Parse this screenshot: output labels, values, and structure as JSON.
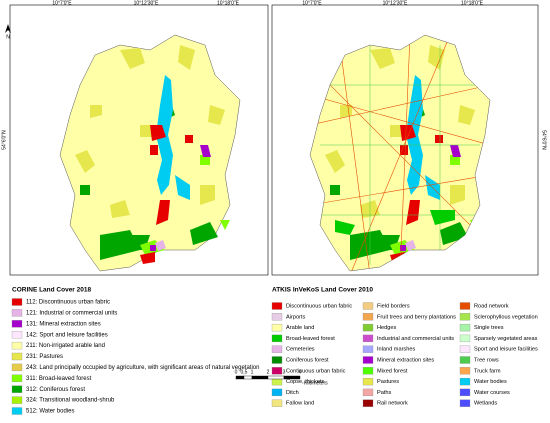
{
  "maps": [
    {
      "lon_labels": [
        "10°7'0\"E",
        "10°12'30\"E",
        "10°18'0\"E"
      ],
      "lat_label": "54°6'0\"N"
    },
    {
      "lon_labels": [
        "10°7'0\"E",
        "10°12'30\"E",
        "10°18'0\"E"
      ],
      "lat_label": "54°6'0\"N"
    }
  ],
  "north": "N",
  "scale": {
    "labels": [
      "0",
      "0,5",
      "1",
      "2",
      "3",
      "4"
    ],
    "unit": "Kilometers"
  },
  "left_legend": {
    "title": "CORINE Land Cover 2018",
    "items": [
      {
        "label": "112: Discontinuous urban fabric",
        "color": "#e60000"
      },
      {
        "label": "121: Industrial or commercial units",
        "color": "#e6b3e6"
      },
      {
        "label": "131: Mineral extraction sites",
        "color": "#a600cc"
      },
      {
        "label": "142: Sport and leisure facilities",
        "color": "#ffe6ff"
      },
      {
        "label": "211: Non-irrigated arable land",
        "color": "#ffffa8"
      },
      {
        "label": "231: Pastures",
        "color": "#e6e64d"
      },
      {
        "label": "243: Land principally occupied by agriculture, with significant areas of natural vegetation",
        "color": "#e6cc4d"
      },
      {
        "label": "311: Broad-leaved forest",
        "color": "#80ff00"
      },
      {
        "label": "312: Coniferous forest",
        "color": "#00a600"
      },
      {
        "label": "324: Transitional woodland-shrub",
        "color": "#a6f200"
      },
      {
        "label": "512: Water bodies",
        "color": "#00ccf2"
      }
    ]
  },
  "right_legend": {
    "title": "ATKIS InVeKoS Land Cover 2010",
    "items": [
      {
        "label": "Discontinuous urban fabric",
        "color": "#e60000"
      },
      {
        "label": "Airports",
        "color": "#e6cce6"
      },
      {
        "label": "Arable land",
        "color": "#ffffa8"
      },
      {
        "label": "Broad-leaved forest",
        "color": "#00cc00"
      },
      {
        "label": "Cemeteries",
        "color": "#e6b3e6"
      },
      {
        "label": "Coniferous forest",
        "color": "#008c00"
      },
      {
        "label": "Continuous urban fabric",
        "color": "#cc0066"
      },
      {
        "label": "Copse, thickets",
        "color": "#ccf24d"
      },
      {
        "label": "Ditch",
        "color": "#00b3f2"
      },
      {
        "label": "Fallow land",
        "color": "#f2e680"
      },
      {
        "label": "Field borders",
        "color": "#f2cc80"
      },
      {
        "label": "Fruit trees and berry plantations",
        "color": "#f2a64d"
      },
      {
        "label": "Hedges",
        "color": "#80cc33"
      },
      {
        "label": "Industrial and commercial units",
        "color": "#cc4dcc"
      },
      {
        "label": "Inland marshes",
        "color": "#a6a6ff"
      },
      {
        "label": "Mineral extraction sites",
        "color": "#a600cc"
      },
      {
        "label": "Mixed forest",
        "color": "#4dff00"
      },
      {
        "label": "Pastures",
        "color": "#e6e64d"
      },
      {
        "label": "Paths",
        "color": "#f2a6a6"
      },
      {
        "label": "Rail network",
        "color": "#990000"
      },
      {
        "label": "Road network",
        "color": "#e64d00"
      },
      {
        "label": "Sclerophyllous vegetation",
        "color": "#a6e64d"
      },
      {
        "label": "Single trees",
        "color": "#a6f2a6"
      },
      {
        "label": "Sparsely vegetated areas",
        "color": "#ccffcc"
      },
      {
        "label": "Sport and leisure facilities",
        "color": "#ffe6ff"
      },
      {
        "label": "Tree rows",
        "color": "#4dcc4d"
      },
      {
        "label": "Truck farm",
        "color": "#ffa64d"
      },
      {
        "label": "Water bodies",
        "color": "#00ccf2"
      },
      {
        "label": "Water courses",
        "color": "#4d4dff"
      },
      {
        "label": "Wetlands",
        "color": "#4d4dff"
      }
    ]
  }
}
